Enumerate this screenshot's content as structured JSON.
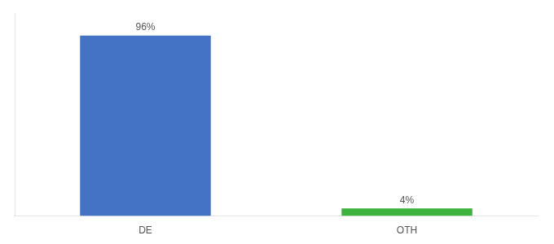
{
  "chart_data": {
    "type": "bar",
    "categories": [
      "DE",
      "OTH"
    ],
    "values": [
      96,
      4
    ],
    "value_labels": [
      "96%",
      "4%"
    ],
    "colors": [
      "#4472c4",
      "#3db33d"
    ],
    "ylim": [
      0,
      108
    ],
    "data_labels": true,
    "tick_labels": "x",
    "grid": false
  }
}
